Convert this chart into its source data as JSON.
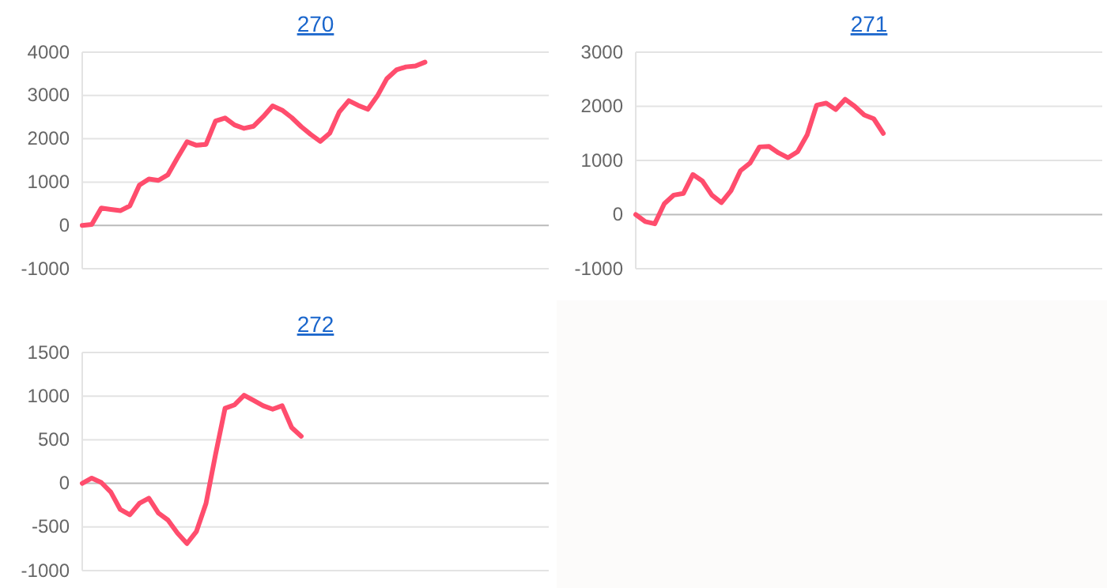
{
  "chart_data": [
    {
      "type": "line",
      "title": "270",
      "categories": [
        null,
        null,
        null,
        null,
        null,
        null,
        null,
        null,
        null,
        null,
        null,
        null,
        null,
        null,
        null,
        null,
        null,
        null,
        null,
        null,
        null,
        null,
        null,
        null,
        null,
        null,
        null,
        null,
        null,
        null,
        null,
        null,
        null,
        null,
        null,
        null,
        null,
        null,
        null,
        null,
        null,
        null,
        null,
        null,
        null,
        null,
        null,
        null,
        null,
        null
      ],
      "series": [
        {
          "color": "#ff4d6d",
          "values": [
            0,
            20,
            400,
            370,
            340,
            450,
            930,
            1070,
            1040,
            1170,
            1560,
            1930,
            1850,
            1870,
            2410,
            2480,
            2320,
            2240,
            2290,
            2510,
            2760,
            2660,
            2490,
            2280,
            2100,
            1940,
            2130,
            2620,
            2880,
            2770,
            2680,
            2990,
            3390,
            3590,
            3660,
            3680,
            3770,
            null,
            null,
            null,
            null,
            null,
            null,
            null,
            null,
            null,
            null,
            null,
            null,
            null
          ]
        }
      ],
      "ylim": [
        -1000,
        4000
      ],
      "yticks": [
        -1000,
        0,
        1000,
        2000,
        3000,
        4000
      ],
      "grid": "y",
      "tick_labels": "y",
      "marker": "none"
    },
    {
      "type": "line",
      "title": "271",
      "categories": [
        null,
        null,
        null,
        null,
        null,
        null,
        null,
        null,
        null,
        null,
        null,
        null,
        null,
        null,
        null,
        null,
        null,
        null,
        null,
        null,
        null,
        null,
        null,
        null,
        null,
        null,
        null,
        null,
        null,
        null,
        null,
        null,
        null,
        null,
        null,
        null,
        null,
        null,
        null,
        null,
        null,
        null,
        null,
        null,
        null,
        null,
        null,
        null,
        null,
        null
      ],
      "series": [
        {
          "color": "#ff4d6d",
          "values": [
            0,
            -130,
            -170,
            200,
            360,
            390,
            740,
            620,
            360,
            220,
            440,
            810,
            950,
            1250,
            1260,
            1140,
            1050,
            1160,
            1470,
            2020,
            2060,
            1940,
            2130,
            2000,
            1840,
            1770,
            1500,
            null,
            null,
            null,
            null,
            null,
            null,
            null,
            null,
            null,
            null,
            null,
            null,
            null,
            null,
            null,
            null,
            null,
            null,
            null,
            null,
            null,
            null,
            null
          ]
        }
      ],
      "ylim": [
        -1000,
        3000
      ],
      "yticks": [
        -1000,
        0,
        1000,
        2000,
        3000
      ],
      "grid": "y",
      "tick_labels": "y",
      "marker": "none"
    },
    {
      "type": "line",
      "title": "272",
      "categories": [
        null,
        null,
        null,
        null,
        null,
        null,
        null,
        null,
        null,
        null,
        null,
        null,
        null,
        null,
        null,
        null,
        null,
        null,
        null,
        null,
        null,
        null,
        null,
        null,
        null,
        null,
        null,
        null,
        null,
        null,
        null,
        null,
        null,
        null,
        null,
        null,
        null,
        null,
        null,
        null,
        null,
        null,
        null,
        null,
        null,
        null,
        null,
        null,
        null,
        null
      ],
      "series": [
        {
          "color": "#ff4d6d",
          "values": [
            0,
            60,
            10,
            -100,
            -300,
            -360,
            -230,
            -170,
            -340,
            -420,
            -570,
            -690,
            -550,
            -230,
            330,
            860,
            900,
            1010,
            950,
            890,
            850,
            890,
            640,
            540,
            null,
            null,
            null,
            null,
            null,
            null,
            null,
            null,
            null,
            null,
            null,
            null,
            null,
            null,
            null,
            null,
            null,
            null,
            null,
            null,
            null,
            null,
            null,
            null,
            null,
            null
          ]
        }
      ],
      "ylim": [
        -1000,
        1500
      ],
      "yticks": [
        -1000,
        -500,
        0,
        500,
        1000,
        1500
      ],
      "grid": "y",
      "tick_labels": "y",
      "marker": "none"
    }
  ]
}
